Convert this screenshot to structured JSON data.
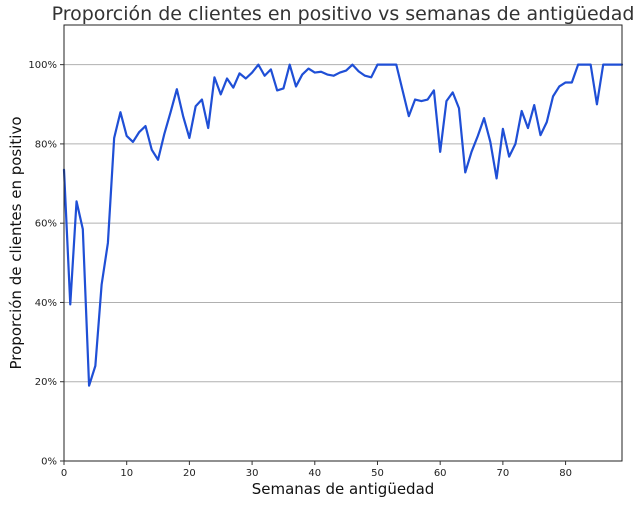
{
  "chart_data": {
    "type": "line",
    "title": "Proporción de clientes en positivo vs semanas de antigüedad",
    "xlabel": "Semanas de antigüedad",
    "ylabel": "Proporción de clientes en positivo",
    "xlim": [
      0,
      89
    ],
    "ylim": [
      0,
      1.1
    ],
    "xticks": [
      0,
      10,
      20,
      30,
      40,
      50,
      60,
      70,
      80
    ],
    "yticks": [
      0,
      0.2,
      0.4,
      0.6,
      0.8,
      1.0
    ],
    "ytick_labels": [
      "0%",
      "20%",
      "40%",
      "60%",
      "80%",
      "100%"
    ],
    "grid": "horizontal",
    "line_color": "#1f4fd6",
    "series": [
      {
        "name": "Proporción de clientes en positivo",
        "x": [
          0,
          1,
          2,
          3,
          4,
          5,
          6,
          7,
          8,
          9,
          10,
          11,
          12,
          13,
          14,
          15,
          16,
          17,
          18,
          19,
          20,
          21,
          22,
          23,
          24,
          25,
          26,
          27,
          28,
          29,
          30,
          31,
          32,
          33,
          34,
          35,
          36,
          37,
          38,
          39,
          40,
          41,
          42,
          43,
          44,
          45,
          46,
          47,
          48,
          49,
          50,
          51,
          52,
          53,
          54,
          55,
          56,
          57,
          58,
          59,
          60,
          61,
          62,
          63,
          64,
          65,
          66,
          67,
          68,
          69,
          70,
          71,
          72,
          73,
          74,
          75,
          76,
          77,
          78,
          79,
          80,
          81,
          82,
          83,
          84,
          85,
          86,
          87,
          88,
          89
        ],
        "values": [
          0.735,
          0.395,
          0.655,
          0.585,
          0.19,
          0.24,
          0.445,
          0.55,
          0.815,
          0.88,
          0.82,
          0.805,
          0.83,
          0.845,
          0.785,
          0.76,
          0.825,
          0.88,
          0.938,
          0.87,
          0.815,
          0.895,
          0.912,
          0.84,
          0.968,
          0.925,
          0.965,
          0.942,
          0.978,
          0.965,
          0.98,
          1.0,
          0.972,
          0.988,
          0.935,
          0.94,
          1.0,
          0.945,
          0.975,
          0.99,
          0.98,
          0.982,
          0.975,
          0.972,
          0.98,
          0.985,
          1.0,
          0.983,
          0.972,
          0.968,
          1.0,
          1.0,
          1.0,
          1.0,
          0.935,
          0.87,
          0.912,
          0.908,
          0.912,
          0.935,
          0.78,
          0.908,
          0.93,
          0.89,
          0.728,
          0.78,
          0.82,
          0.865,
          0.805,
          0.713,
          0.838,
          0.768,
          0.8,
          0.883,
          0.84,
          0.898,
          0.822,
          0.855,
          0.92,
          0.945,
          0.955,
          0.955,
          1.0,
          1.0,
          1.0,
          0.9,
          1.0,
          1.0,
          1.0,
          1.0
        ]
      }
    ]
  }
}
